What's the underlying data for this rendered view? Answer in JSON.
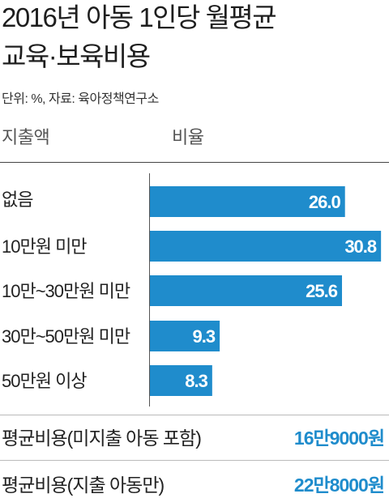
{
  "header": {
    "title_line1": "2016년 아동 1인당 월평균",
    "title_line2": "교육·보육비용",
    "source": "단위: %, 자료: 육아정책연구소",
    "col_category": "지출액",
    "col_value": "비율"
  },
  "chart_data": {
    "type": "bar",
    "orientation": "horizontal",
    "title": "2016년 아동 1인당 월평균 교육·보육비용",
    "unit": "%",
    "categories": [
      "없음",
      "10만원 미만",
      "10만~30만원 미만",
      "30만~50만원 미만",
      "50만원 이상"
    ],
    "values": [
      26.0,
      30.8,
      25.6,
      9.3,
      8.3
    ],
    "value_labels": [
      "26.0",
      "30.8",
      "25.6",
      "9.3",
      "8.3"
    ],
    "xlim": [
      0,
      31
    ],
    "grid": false,
    "bar_color": "#1f8ccc",
    "label_color": "#ffffff"
  },
  "summary": [
    {
      "label": "평균비용(미지출 아동 포함)",
      "value": "16만9000원"
    },
    {
      "label": "평균비용(지출 아동만)",
      "value": "22만8000원"
    }
  ],
  "colors": {
    "accent": "#1f8ccc"
  }
}
